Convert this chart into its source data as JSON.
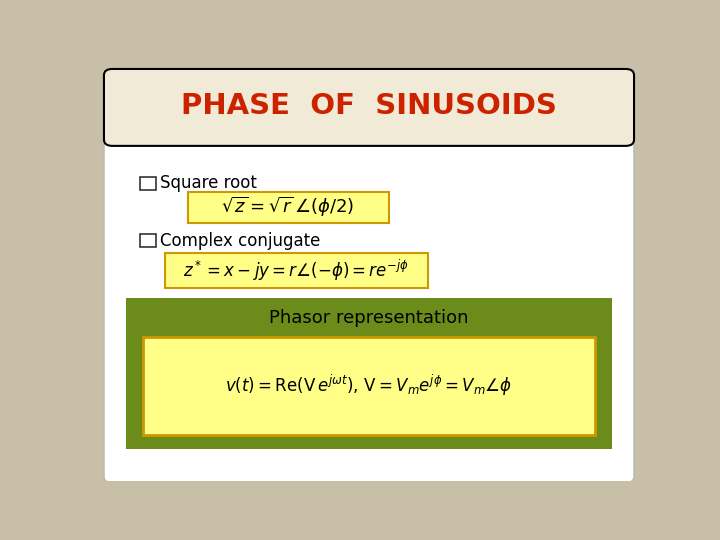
{
  "title": "PHASE  OF  SINUSOIDS",
  "title_color": "#CC2200",
  "title_bg": "#F0EAD6",
  "slide_bg": "#C8BFA8",
  "content_bg": "#FFFFFF",
  "header_border": "#000000",
  "green_box_color": "#6B8C1A",
  "yellow_box_color": "#FFFF88",
  "yellow_border_color": "#CC9900",
  "bullet_color": "#000000",
  "bullet1_text": "Square root",
  "bullet2_text": "Complex conjugate",
  "phasor_label": "Phasor representation",
  "phasor_label_color": "#000000"
}
